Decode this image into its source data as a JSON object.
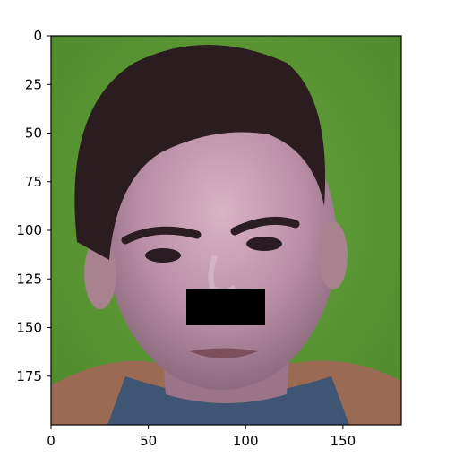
{
  "image_panel": {
    "kind": "photo-face-portrait",
    "background_color": "#5e9a36",
    "redaction_box_color": "#000000",
    "x_axis": {
      "range": [
        0,
        180
      ],
      "ticks": [
        0,
        50,
        100,
        150
      ],
      "tick_labels": [
        "0",
        "50",
        "100",
        "150"
      ]
    },
    "y_axis": {
      "range": [
        0,
        200
      ],
      "inverted": true,
      "ticks": [
        0,
        25,
        50,
        75,
        100,
        125,
        150,
        175
      ],
      "tick_labels": [
        "0",
        "25",
        "50",
        "75",
        "100",
        "125",
        "150",
        "175"
      ]
    }
  }
}
